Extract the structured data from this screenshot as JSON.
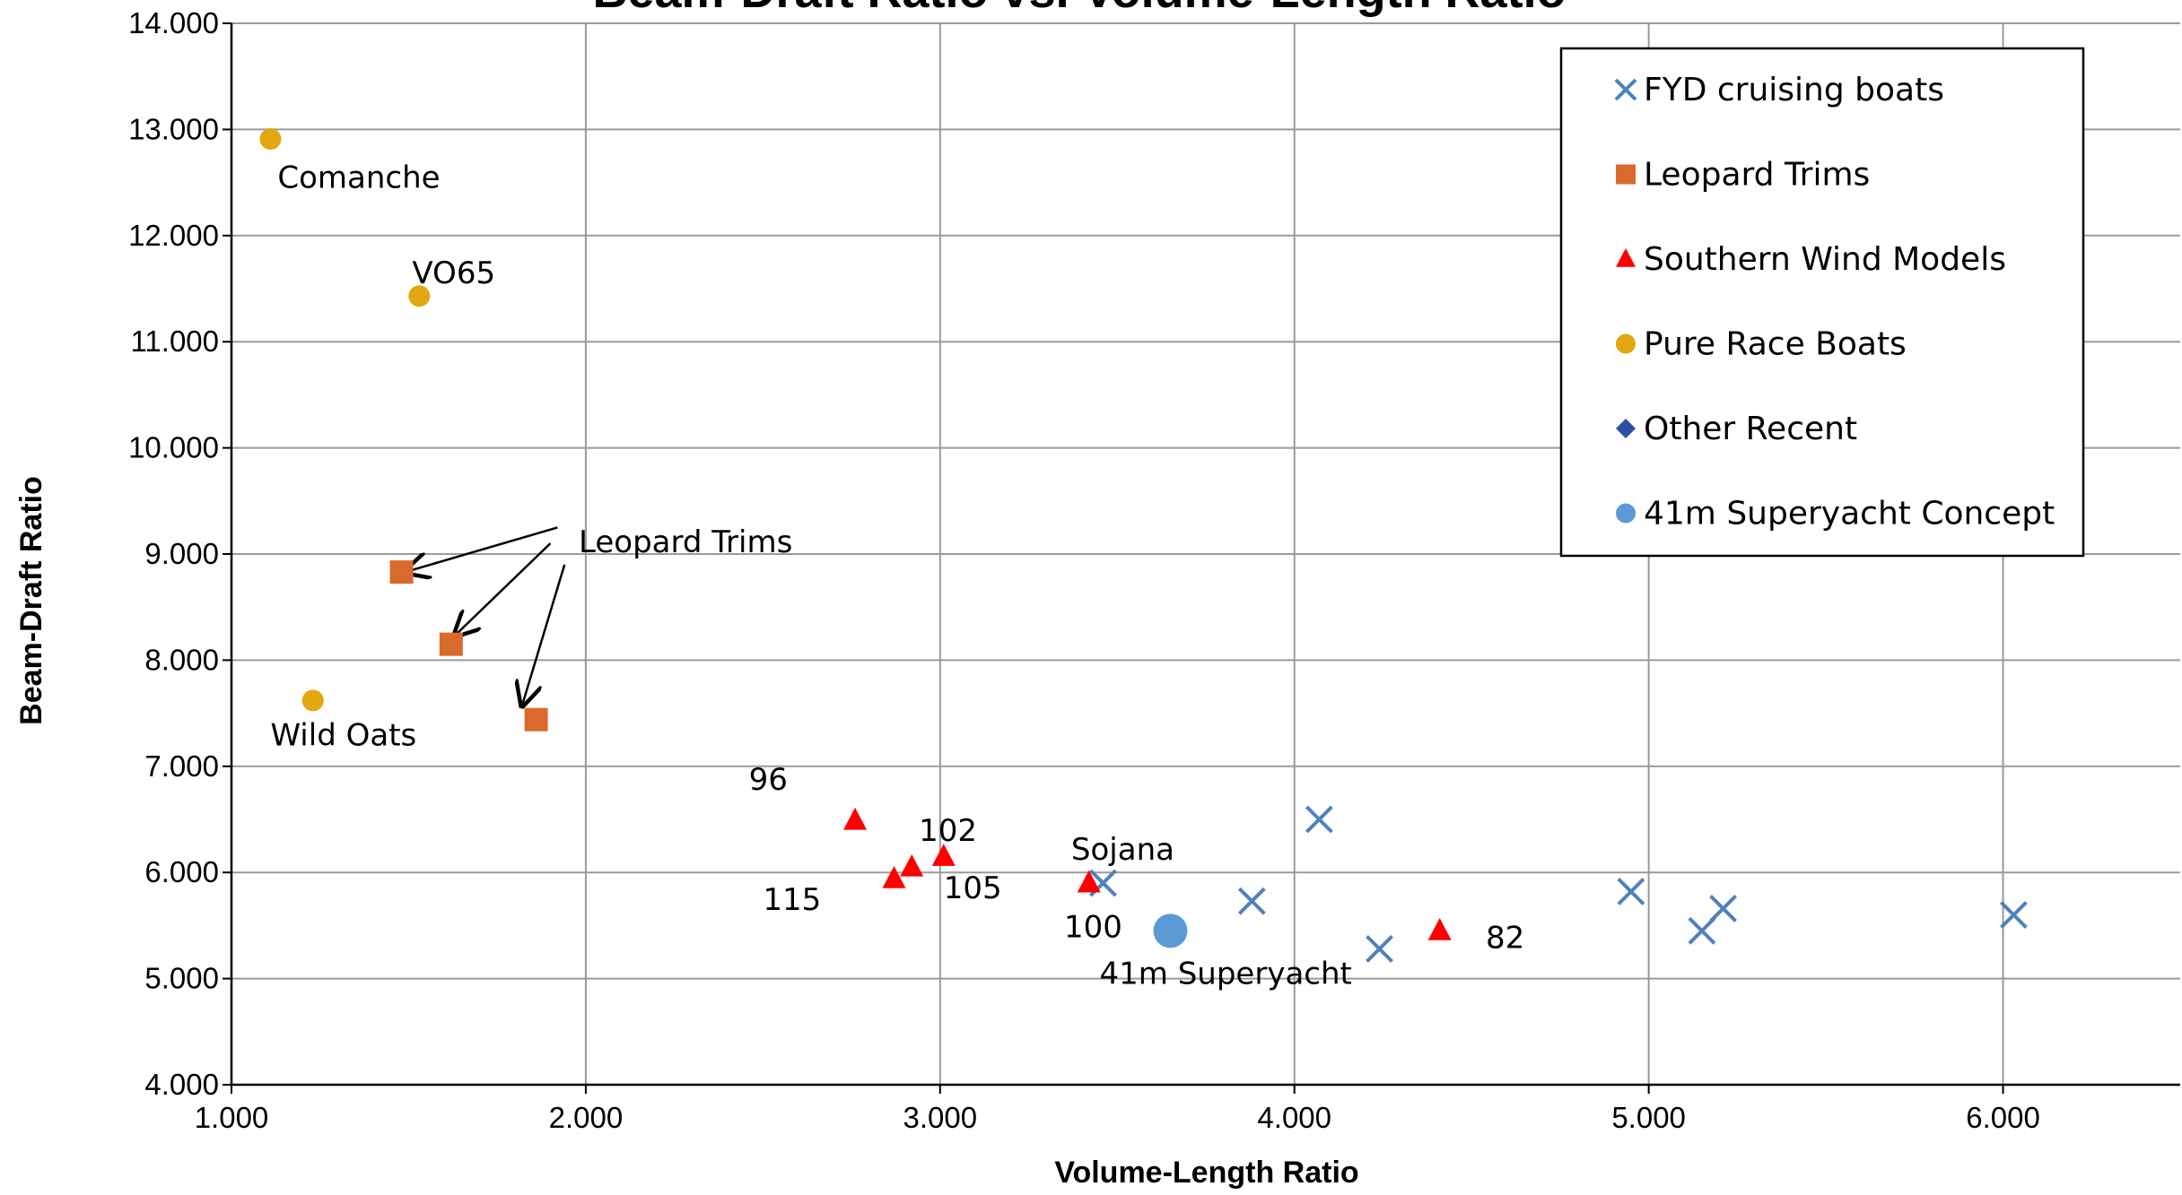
{
  "chart_data": {
    "type": "scatter",
    "title": "Beam-Draft Ratio vs. Volume-Length Ratio",
    "xlabel": "Volume-Length Ratio",
    "ylabel": "Beam-Draft Ratio",
    "xlim": [
      1.0,
      6.5
    ],
    "ylim": [
      4.0,
      14.0
    ],
    "x_ticks": [
      "1.000",
      "2.000",
      "3.000",
      "4.000",
      "5.000",
      "6.000"
    ],
    "y_ticks": [
      "4.000",
      "5.000",
      "6.000",
      "7.000",
      "8.000",
      "9.000",
      "10.000",
      "11.000",
      "12.000",
      "13.000",
      "14.000"
    ],
    "grid": true,
    "legend_position": "top-right",
    "series": [
      {
        "name": "FYD cruising boats",
        "marker": "x",
        "color": "#4F81BD",
        "points": [
          [
            3.46,
            5.9
          ],
          [
            3.88,
            5.73
          ],
          [
            4.07,
            6.5
          ],
          [
            4.24,
            5.28
          ],
          [
            4.95,
            5.82
          ],
          [
            5.15,
            5.45
          ],
          [
            5.21,
            5.66
          ],
          [
            6.03,
            5.6
          ]
        ]
      },
      {
        "name": "Leopard Trims",
        "marker": "square",
        "color": "#D9692D",
        "points": [
          [
            1.48,
            8.83
          ],
          [
            1.62,
            8.15
          ],
          [
            1.86,
            7.44
          ]
        ]
      },
      {
        "name": "Southern Wind Models",
        "marker": "triangle",
        "color": "#FF0000",
        "points": [
          [
            2.76,
            6.49
          ],
          [
            2.87,
            5.94
          ],
          [
            2.92,
            6.05
          ],
          [
            3.01,
            6.15
          ],
          [
            3.42,
            5.9
          ],
          [
            4.41,
            5.45
          ]
        ]
      },
      {
        "name": "Pure Race Boats",
        "marker": "circle",
        "color": "#E3A80F",
        "points": [
          [
            1.11,
            12.91
          ],
          [
            1.53,
            11.43
          ],
          [
            1.23,
            7.62
          ]
        ]
      },
      {
        "name": "Other Recent",
        "marker": "diamond",
        "color": "#2E4FA0",
        "points": []
      },
      {
        "name": "41m Superyacht Concept",
        "marker": "circle",
        "color": "#5B9BD5",
        "points": [
          [
            3.65,
            5.45
          ]
        ]
      }
    ],
    "annotations": [
      {
        "text": "Comanche",
        "x": 1.13,
        "y": 12.55
      },
      {
        "text": "VO65",
        "x": 1.51,
        "y": 11.65
      },
      {
        "text": "Leopard Trims",
        "x": 1.98,
        "y": 9.12
      },
      {
        "text": "Wild Oats",
        "x": 1.11,
        "y": 7.3
      },
      {
        "text": "96",
        "x": 2.46,
        "y": 6.88
      },
      {
        "text": "102",
        "x": 2.94,
        "y": 6.4
      },
      {
        "text": "115",
        "x": 2.5,
        "y": 5.75
      },
      {
        "text": "105",
        "x": 3.01,
        "y": 5.86
      },
      {
        "text": "Sojana",
        "x": 3.37,
        "y": 6.22
      },
      {
        "text": "100",
        "x": 3.35,
        "y": 5.49
      },
      {
        "text": "41m Superyacht",
        "x": 3.45,
        "y": 5.05
      },
      {
        "text": "82",
        "x": 4.54,
        "y": 5.39
      }
    ],
    "arrows": [
      {
        "from": [
          1.92,
          9.25
        ],
        "to": [
          1.49,
          8.83
        ]
      },
      {
        "from": [
          1.9,
          9.1
        ],
        "to": [
          1.63,
          8.23
        ]
      },
      {
        "from": [
          1.94,
          8.9
        ],
        "to": [
          1.82,
          7.57
        ]
      }
    ]
  }
}
